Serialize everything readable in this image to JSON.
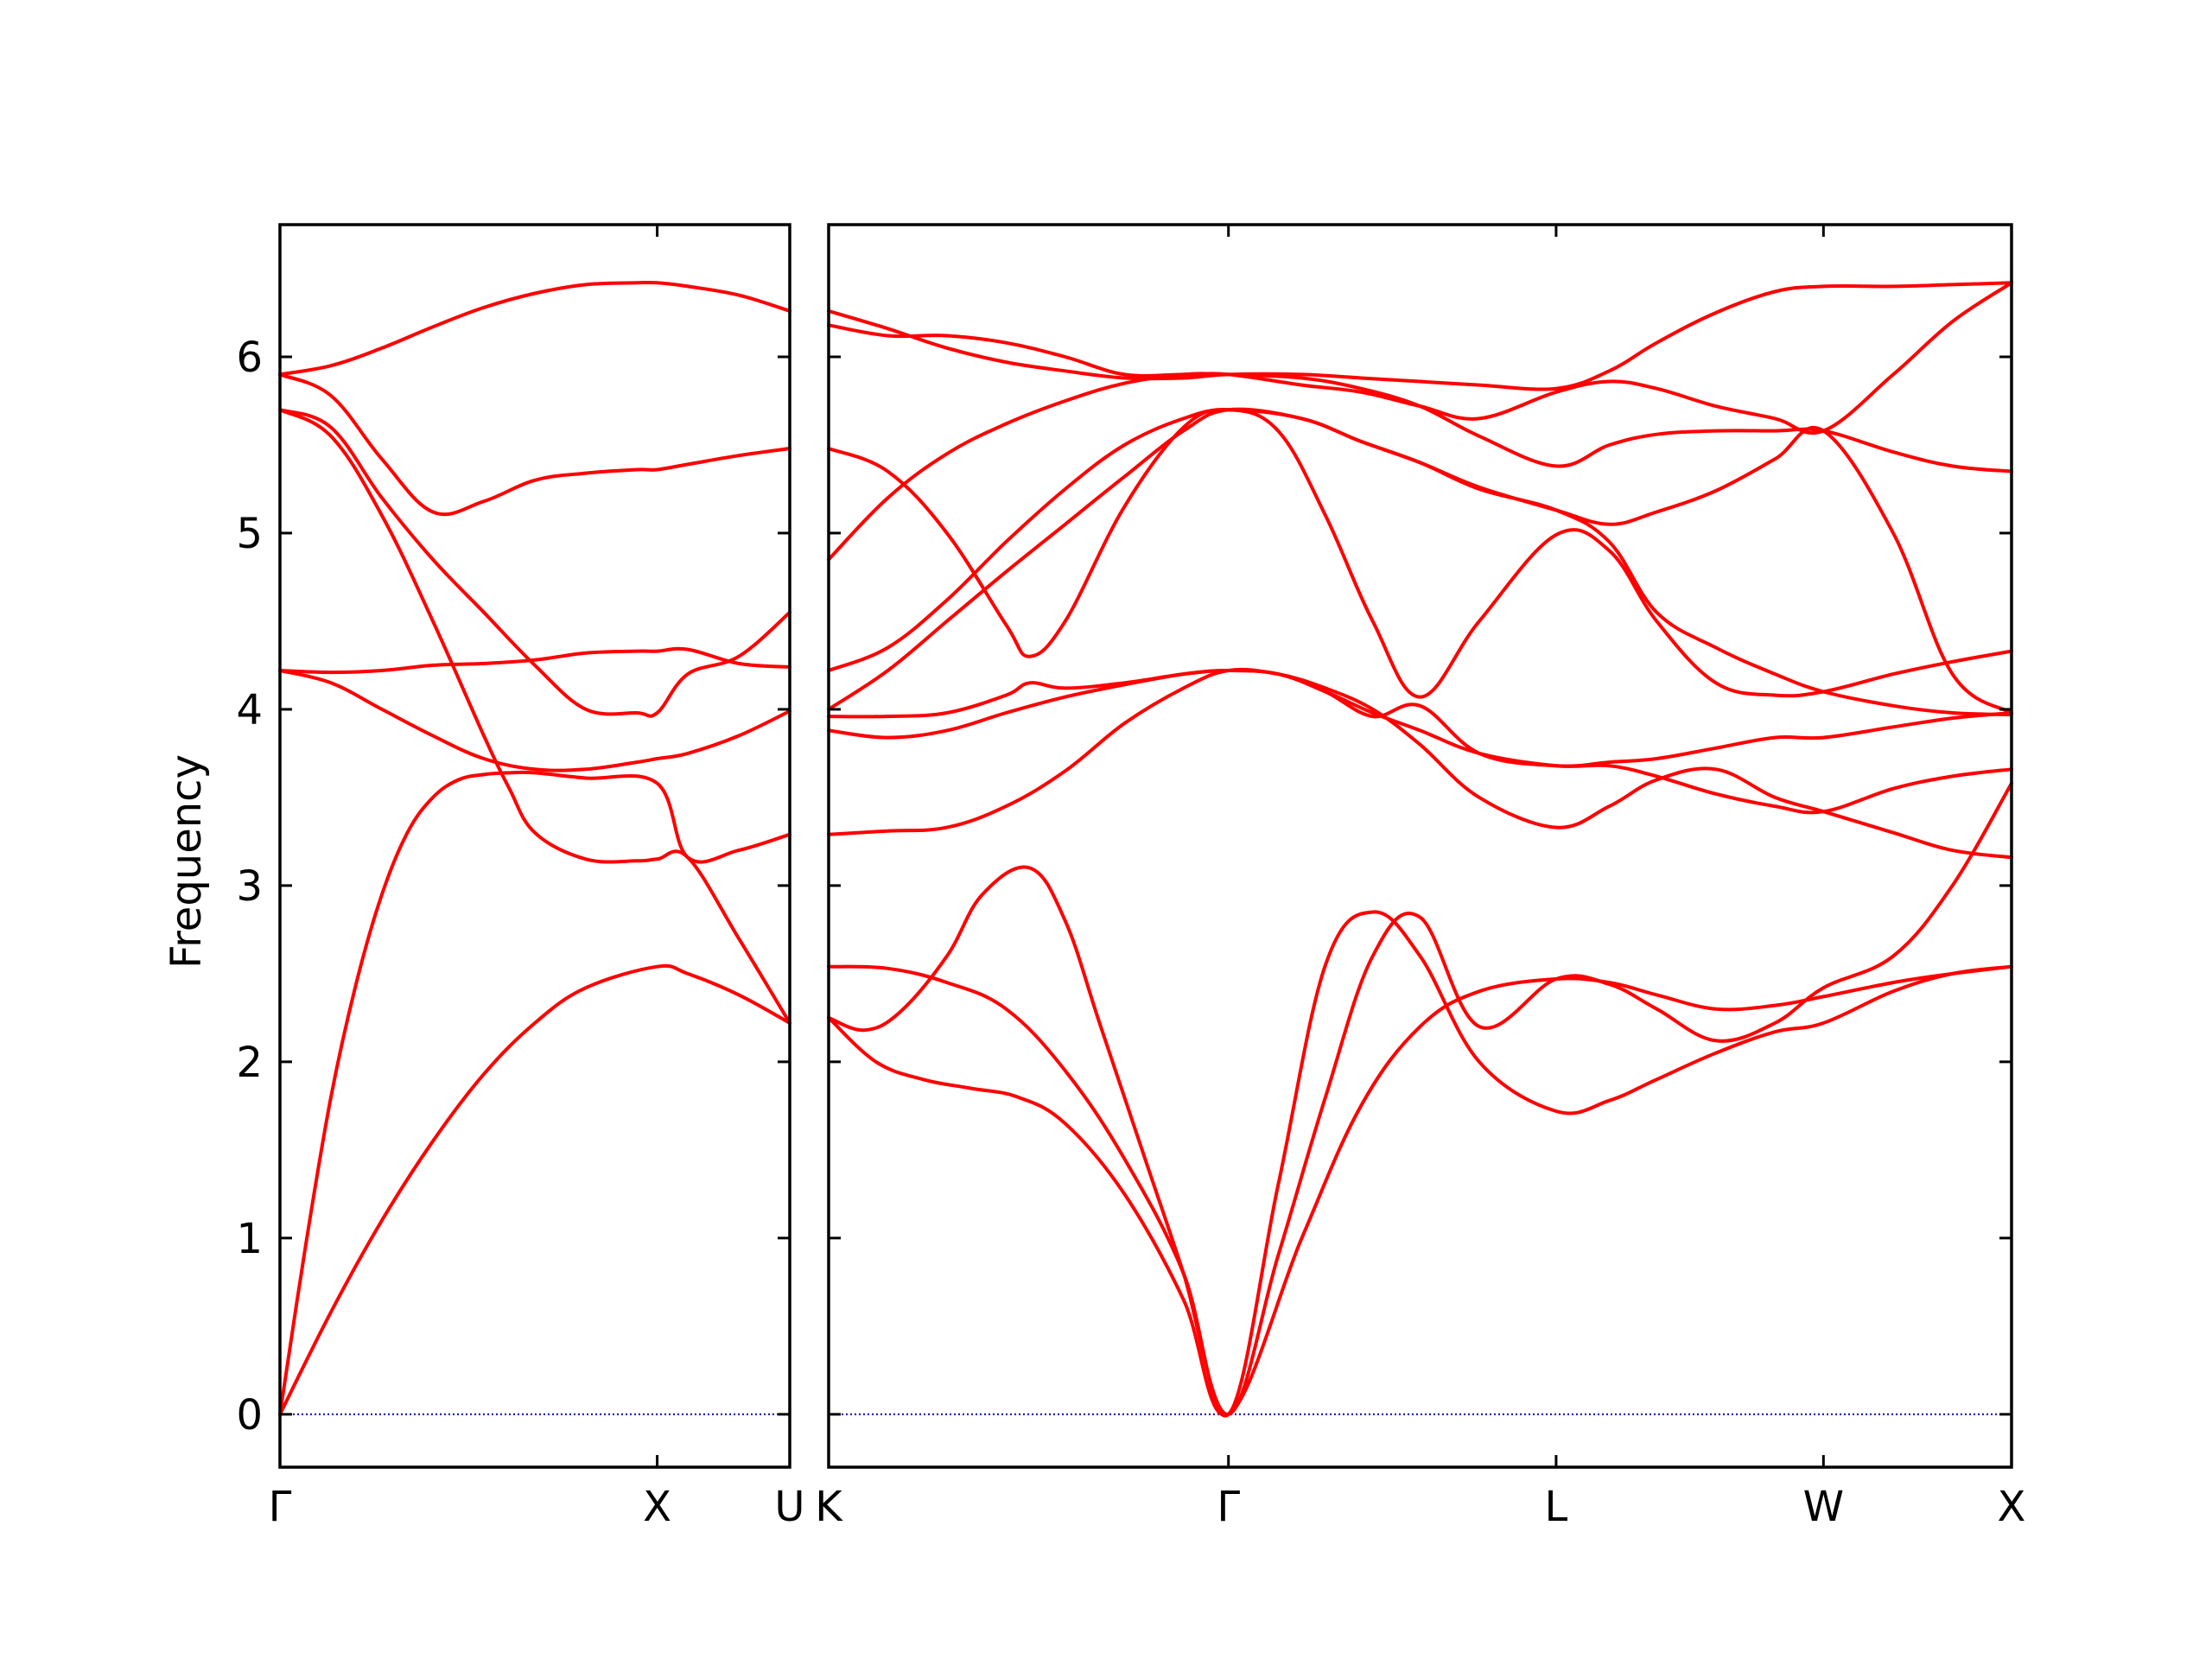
{
  "chart_data": {
    "type": "line",
    "ylabel": "Frequency",
    "ylim": [
      -0.3,
      6.75
    ],
    "yticks": [
      0,
      1,
      2,
      3,
      4,
      5,
      6
    ],
    "yticklabels": [
      "0",
      "1",
      "2",
      "3",
      "4",
      "5",
      "6"
    ],
    "grid": false,
    "colors": {
      "bands": "#ff0000",
      "zero_line": "#0000cc"
    },
    "panels": [
      {
        "name": "Gamma-X-U",
        "xrange": [
          0,
          1
        ],
        "xticks": [
          0,
          0.74,
          1
        ],
        "xticklabels": [
          "Γ",
          "X",
          "U"
        ],
        "bands": [
          {
            "name": "band 1",
            "x": [
              0,
              0.1,
              0.2,
              0.3,
              0.4,
              0.5,
              0.6,
              0.74,
              0.8,
              0.9,
              1
            ],
            "y": [
              0,
              0.58,
              1.1,
              1.55,
              1.93,
              2.22,
              2.42,
              2.54,
              2.5,
              2.38,
              2.22
            ]
          },
          {
            "name": "band 2",
            "x": [
              0,
              0.05,
              0.1,
              0.15,
              0.2,
              0.25,
              0.3,
              0.35,
              0.4,
              0.45,
              0.5,
              0.6,
              0.74,
              0.8,
              0.9,
              1
            ],
            "y": [
              0,
              0.95,
              1.8,
              2.45,
              2.95,
              3.3,
              3.5,
              3.6,
              3.63,
              3.64,
              3.64,
              3.61,
              3.58,
              3.16,
              3.2,
              3.29
            ]
          },
          {
            "name": "band 3",
            "x": [
              0,
              0.1,
              0.2,
              0.3,
              0.4,
              0.45,
              0.5,
              0.6,
              0.7,
              0.74,
              0.8,
              0.9,
              1
            ],
            "y": [
              5.7,
              5.55,
              5.1,
              4.5,
              3.85,
              3.55,
              3.3,
              3.15,
              3.14,
              3.15,
              3.16,
              2.7,
              2.22
            ]
          },
          {
            "name": "band 4",
            "x": [
              0,
              0.1,
              0.2,
              0.3,
              0.4,
              0.5,
              0.6,
              0.7,
              0.74,
              0.8,
              0.9,
              1
            ],
            "y": [
              4.22,
              4.15,
              4.0,
              3.85,
              3.72,
              3.66,
              3.66,
              3.7,
              3.72,
              3.75,
              3.85,
              3.99
            ]
          },
          {
            "name": "band 5",
            "x": [
              0,
              0.1,
              0.2,
              0.3,
              0.4,
              0.5,
              0.6,
              0.7,
              0.74,
              0.8,
              0.9,
              1
            ],
            "y": [
              4.22,
              4.21,
              4.22,
              4.25,
              4.26,
              4.28,
              4.32,
              4.33,
              4.33,
              4.34,
              4.26,
              4.24
            ]
          },
          {
            "name": "band 6",
            "x": [
              0,
              0.1,
              0.2,
              0.3,
              0.4,
              0.5,
              0.6,
              0.7,
              0.74,
              0.8,
              0.9,
              1
            ],
            "y": [
              5.7,
              5.6,
              5.2,
              4.85,
              4.55,
              4.25,
              4.0,
              3.98,
              3.98,
              4.2,
              4.3,
              4.55
            ]
          },
          {
            "name": "band 7",
            "x": [
              0,
              0.1,
              0.2,
              0.3,
              0.4,
              0.5,
              0.6,
              0.7,
              0.74,
              0.8,
              0.9,
              1
            ],
            "y": [
              5.9,
              5.78,
              5.42,
              5.12,
              5.18,
              5.3,
              5.34,
              5.36,
              5.36,
              5.39,
              5.44,
              5.48
            ]
          },
          {
            "name": "band 8",
            "x": [
              0,
              0.1,
              0.2,
              0.3,
              0.4,
              0.5,
              0.6,
              0.7,
              0.74,
              0.8,
              0.9,
              1
            ],
            "y": [
              5.9,
              5.95,
              6.05,
              6.17,
              6.28,
              6.36,
              6.41,
              6.42,
              6.42,
              6.4,
              6.35,
              6.26
            ]
          }
        ]
      },
      {
        "name": "K-Gamma-L-W-X",
        "xrange": [
          0,
          1
        ],
        "xticks": [
          0,
          0.338,
          0.615,
          0.841,
          1
        ],
        "xticklabels": [
          "K",
          "Γ",
          "L",
          "W",
          "X"
        ],
        "bands": [
          {
            "name": "band 1",
            "x": [
              0,
              0.04,
              0.08,
              0.12,
              0.16,
              0.2,
              0.25,
              0.3,
              0.338,
              0.4,
              0.45,
              0.5,
              0.55,
              0.615,
              0.66,
              0.7,
              0.75,
              0.8,
              0.841,
              0.9,
              0.95,
              1
            ],
            "y": [
              2.25,
              2.0,
              1.9,
              1.85,
              1.8,
              1.65,
              1.25,
              0.65,
              0,
              1.0,
              1.75,
              2.2,
              2.4,
              2.47,
              2.45,
              2.38,
              2.3,
              2.32,
              2.37,
              2.45,
              2.5,
              2.54
            ]
          },
          {
            "name": "band 2",
            "x": [
              0,
              0.05,
              0.1,
              0.15,
              0.2,
              0.25,
              0.3,
              0.338,
              0.38,
              0.42,
              0.46,
              0.5,
              0.55,
              0.615,
              0.66,
              0.7,
              0.75,
              0.8,
              0.841,
              0.9,
              0.95,
              1
            ],
            "y": [
              2.54,
              2.53,
              2.45,
              2.3,
              1.95,
              1.45,
              0.8,
              0,
              1.3,
              2.55,
              2.85,
              2.6,
              2.0,
              1.72,
              1.78,
              1.9,
              2.05,
              2.17,
              2.22,
              2.4,
              2.5,
              2.54
            ]
          },
          {
            "name": "band 3",
            "x": [
              0,
              0.03,
              0.06,
              0.1,
              0.13,
              0.17,
              0.2,
              0.23,
              0.27,
              0.3,
              0.338,
              0.38,
              0.42,
              0.46,
              0.5,
              0.55,
              0.615,
              0.66,
              0.7,
              0.75,
              0.8,
              0.841,
              0.9,
              0.95,
              1
            ],
            "y": [
              2.25,
              2.18,
              2.28,
              2.6,
              2.95,
              3.1,
              2.8,
              2.2,
              1.4,
              0.8,
              0,
              0.9,
              1.8,
              2.6,
              2.82,
              2.2,
              2.47,
              2.44,
              2.3,
              2.12,
              2.22,
              2.42,
              2.6,
              3.0,
              3.58
            ]
          },
          {
            "name": "band 4",
            "x": [
              0,
              0.05,
              0.1,
              0.15,
              0.2,
              0.25,
              0.3,
              0.338,
              0.38,
              0.42,
              0.46,
              0.5,
              0.55,
              0.615,
              0.66,
              0.7,
              0.75,
              0.8,
              0.841,
              0.9,
              0.95,
              1
            ],
            "y": [
              3.29,
              3.31,
              3.33,
              3.45,
              3.65,
              3.92,
              4.12,
              4.22,
              4.2,
              4.12,
              4.0,
              3.8,
              3.5,
              3.33,
              3.45,
              3.6,
              3.66,
              3.5,
              3.42,
              3.3,
              3.2,
              3.16
            ]
          },
          {
            "name": "band 5",
            "x": [
              0,
              0.05,
              0.1,
              0.15,
              0.2,
              0.25,
              0.3,
              0.338,
              0.38,
              0.42,
              0.46,
              0.5,
              0.55,
              0.615,
              0.66,
              0.7,
              0.75,
              0.8,
              0.841,
              0.9,
              0.95,
              1
            ],
            "y": [
              3.88,
              3.84,
              3.88,
              3.98,
              4.07,
              4.14,
              4.2,
              4.22,
              4.2,
              4.1,
              3.98,
              3.88,
              3.75,
              3.68,
              3.68,
              3.62,
              3.52,
              3.45,
              3.42,
              3.55,
              3.62,
              3.66
            ]
          },
          {
            "name": "band 6",
            "x": [
              0,
              0.05,
              0.1,
              0.15,
              0.17,
              0.2,
              0.25,
              0.3,
              0.338,
              0.38,
              0.42,
              0.46,
              0.5,
              0.55,
              0.615,
              0.66,
              0.7,
              0.75,
              0.8,
              0.841,
              0.9,
              0.95,
              1
            ],
            "y": [
              3.96,
              3.96,
              3.98,
              4.08,
              4.15,
              4.12,
              4.15,
              4.2,
              4.22,
              4.2,
              4.1,
              3.96,
              4.02,
              3.75,
              3.68,
              3.7,
              3.72,
              3.78,
              3.84,
              3.84,
              3.9,
              3.95,
              3.98
            ]
          },
          {
            "name": "band 7",
            "x": [
              0,
              0.05,
              0.1,
              0.15,
              0.17,
              0.2,
              0.25,
              0.3,
              0.338,
              0.38,
              0.42,
              0.46,
              0.5,
              0.55,
              0.615,
              0.66,
              0.7,
              0.75,
              0.8,
              0.841,
              0.9,
              0.95,
              1
            ],
            "y": [
              5.48,
              5.35,
              5.0,
              4.48,
              4.3,
              4.5,
              5.15,
              5.6,
              5.7,
              5.58,
              5.1,
              4.5,
              4.07,
              4.5,
              4.99,
              4.9,
              4.5,
              4.15,
              4.08,
              4.1,
              4.2,
              4.27,
              4.33
            ]
          },
          {
            "name": "band 8",
            "x": [
              0,
              0.05,
              0.1,
              0.15,
              0.2,
              0.25,
              0.3,
              0.338,
              0.4,
              0.45,
              0.5,
              0.55,
              0.615,
              0.66,
              0.7,
              0.75,
              0.8,
              0.841,
              0.9,
              0.95,
              1
            ],
            "y": [
              4.0,
              4.22,
              4.5,
              4.78,
              5.05,
              5.32,
              5.58,
              5.7,
              5.65,
              5.52,
              5.4,
              5.26,
              5.13,
              5.05,
              5.12,
              5.24,
              5.42,
              5.58,
              5.0,
              4.2,
              3.98
            ]
          },
          {
            "name": "band 9",
            "x": [
              0,
              0.05,
              0.1,
              0.15,
              0.2,
              0.25,
              0.3,
              0.338,
              0.4,
              0.45,
              0.5,
              0.55,
              0.615,
              0.66,
              0.7,
              0.75,
              0.8,
              0.841,
              0.9,
              0.95,
              1
            ],
            "y": [
              4.22,
              4.35,
              4.62,
              4.95,
              5.25,
              5.5,
              5.65,
              5.7,
              5.65,
              5.52,
              5.4,
              5.25,
              5.13,
              4.95,
              4.55,
              4.35,
              4.2,
              4.1,
              4.02,
              3.98,
              3.97
            ]
          },
          {
            "name": "band 10",
            "x": [
              0,
              0.05,
              0.1,
              0.15,
              0.2,
              0.25,
              0.3,
              0.338,
              0.4,
              0.45,
              0.5,
              0.55,
              0.615,
              0.66,
              0.7,
              0.75,
              0.8,
              0.841,
              0.9,
              0.95,
              1
            ],
            "y": [
              4.85,
              5.2,
              5.45,
              5.62,
              5.75,
              5.85,
              5.9,
              5.9,
              5.88,
              5.82,
              5.72,
              5.55,
              5.38,
              5.5,
              5.56,
              5.58,
              5.58,
              5.58,
              5.46,
              5.38,
              5.35
            ]
          },
          {
            "name": "band 11",
            "x": [
              0,
              0.05,
              0.1,
              0.15,
              0.2,
              0.25,
              0.3,
              0.338,
              0.4,
              0.45,
              0.5,
              0.55,
              0.615,
              0.66,
              0.7,
              0.75,
              0.8,
              0.841,
              0.9,
              0.95,
              1
            ],
            "y": [
              6.18,
              6.12,
              6.12,
              6.08,
              6.0,
              5.9,
              5.9,
              5.9,
              5.84,
              5.8,
              5.72,
              5.65,
              5.8,
              5.86,
              5.82,
              5.72,
              5.65,
              5.58,
              5.9,
              6.2,
              6.42
            ]
          },
          {
            "name": "band 12",
            "x": [
              0,
              0.05,
              0.1,
              0.15,
              0.2,
              0.25,
              0.3,
              0.338,
              0.4,
              0.45,
              0.5,
              0.55,
              0.615,
              0.66,
              0.7,
              0.75,
              0.8,
              0.841,
              0.9,
              0.95,
              1
            ],
            "y": [
              6.26,
              6.16,
              6.05,
              5.97,
              5.92,
              5.88,
              5.88,
              5.9,
              5.9,
              5.88,
              5.86,
              5.84,
              5.82,
              5.92,
              6.08,
              6.25,
              6.37,
              6.4,
              6.4,
              6.41,
              6.42
            ]
          }
        ]
      }
    ]
  }
}
